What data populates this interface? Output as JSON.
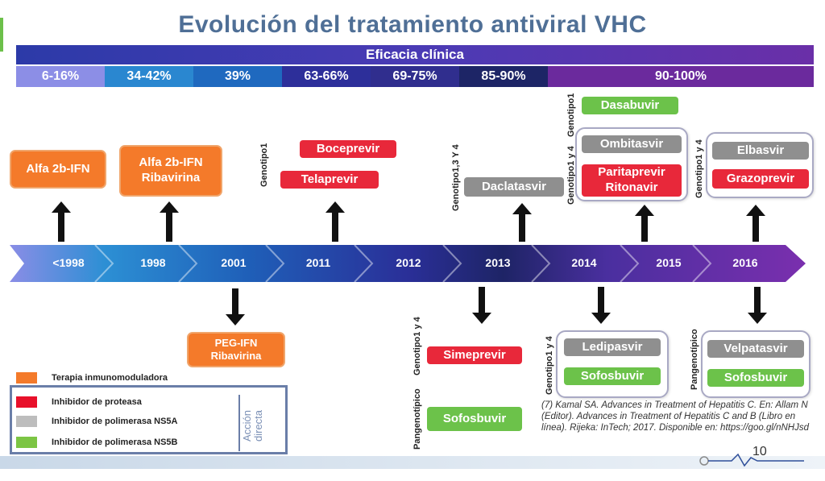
{
  "title": "Evolución del tratamiento antiviral VHC",
  "efficacy_header": "Eficacia clínica",
  "efficacy": [
    "6-16%",
    "34-42%",
    "39%",
    "63-66%",
    "69-75%",
    "85-90%",
    "90-100%"
  ],
  "timeline": [
    "<1998",
    "1998",
    "2001",
    "2011",
    "2012",
    "2013",
    "2014",
    "2015",
    "2016"
  ],
  "drugs": {
    "alfa": "Alfa 2b-IFN",
    "alfa_riba": [
      "Alfa 2b-IFN",
      "Ribavirina"
    ],
    "peg_riba": [
      "PEG-IFN",
      "Ribavirina"
    ],
    "boceprevir": "Boceprevir",
    "telaprevir": "Telaprevir",
    "daclatasvir": "Daclatasvir",
    "simeprevir": "Simeprevir",
    "sofosbuvir_2013": "Sofosbuvir",
    "dasabuvir": "Dasabuvir",
    "ombitasvir": "Ombitasvir",
    "paritaprevir": [
      "Paritaprevir",
      "Ritonavir"
    ],
    "ledipasvir": "Ledipasvir",
    "sofosbuvir_2014": "Sofosbuvir",
    "elbasvir": "Elbasvir",
    "grazoprevir": "Grazoprevir",
    "velpatasvir": "Velpatasvir",
    "sofosbuvir_2016": "Sofosbuvir"
  },
  "genotype_labels": {
    "g_boce": "Genotipo1",
    "g_dacla": "Genotipo1,3 Y 4",
    "g_dasa": "Genotipo1",
    "g_ombi": "Genotipo1 y 4",
    "g_elba": "Genotipo1 y 4",
    "g_sime": "Genotipo1 y 4",
    "g_sofo": "Pangenotípico",
    "g_ledi": "Genotipo1 y 4",
    "g_velpa": "Pangenotípico"
  },
  "legend": {
    "items": [
      {
        "label": "Terapia inmunomoduladora",
        "color": "#f47a2a"
      },
      {
        "label": "Inhibidor de proteasa",
        "color": "#e8102a"
      },
      {
        "label": "Inhibidor de polimerasa NS5A",
        "color": "#bdbdbd"
      },
      {
        "label": "Inhibidor de polimerasa NS5B",
        "color": "#7cc544"
      }
    ],
    "group_label": [
      "Acción",
      "directa"
    ]
  },
  "reference": "(7) Kamal SA. Advances in Treatment of Hepatitis C. En: Allam N (Editor). Advances in Treatment of Hepatitis C and B (Libro en línea). Rijeka: InTech; 2017. Disponible en: https://goo.gl/nNHJsd",
  "page_number": "10",
  "colors": {
    "orange": "#f47a2a",
    "red": "#e8283a",
    "grey": "#8f8f8f",
    "green": "#6cc24a",
    "title": "#4f6f96"
  }
}
